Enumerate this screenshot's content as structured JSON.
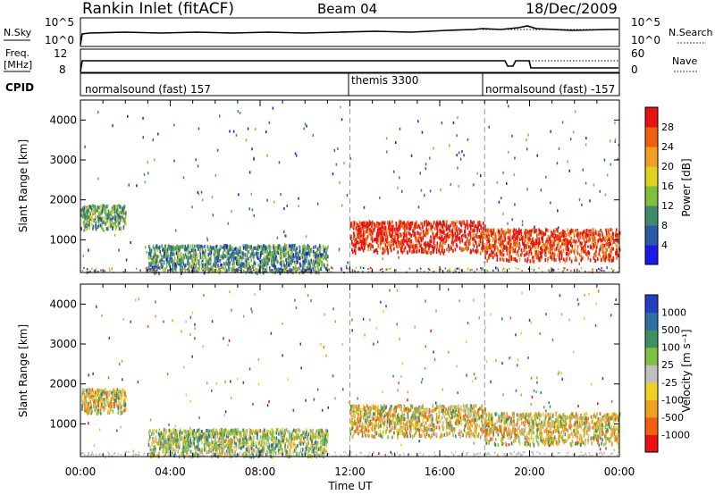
{
  "header": {
    "station": "Rankin Inlet (fitACF)",
    "beam": "Beam 04",
    "date": "18/Dec/2009"
  },
  "strip_labels": {
    "nsky": "N.Sky",
    "nsearch": "N.Search",
    "freq_line1": "Freq.",
    "freq_line2": "[MHz]",
    "nave": "Nave",
    "cpid": "CPID",
    "noise_ticks": [
      "10^5",
      "10^0"
    ],
    "freq_ticks": [
      "12",
      "8"
    ],
    "nave_ticks": [
      "60",
      "0"
    ]
  },
  "cpid_segments": [
    {
      "label": "normalsound (fast) 157",
      "start_hour": 0
    },
    {
      "label": "themis 3300",
      "start_hour": 12
    },
    {
      "label": "normalsound (fast) -157",
      "start_hour": 18
    }
  ],
  "axes": {
    "ylabel": "Slant Range [km]",
    "xlabel": "Time UT",
    "x_ticks": [
      "00:00",
      "04:00",
      "08:00",
      "12:00",
      "16:00",
      "20:00",
      "00:00"
    ],
    "y_ticks": [
      "1000",
      "2000",
      "3000",
      "4000"
    ]
  },
  "colorbars": {
    "power": {
      "label": "Power [dB]",
      "ticks": [
        "4",
        "8",
        "12",
        "16",
        "20",
        "24",
        "28"
      ],
      "colors": [
        "#1a1ae6",
        "#2a5aa8",
        "#3f8a6a",
        "#7fbf3f",
        "#e0d020",
        "#f0a020",
        "#f06010",
        "#e81010"
      ]
    },
    "velocity": {
      "label": "Velocity [m s⁻¹]",
      "ticks": [
        "1000",
        "500",
        "100",
        "25",
        "-25",
        "-100",
        "-500",
        "-1000"
      ],
      "colors": [
        "#2040c0",
        "#2f6fa0",
        "#3f8f60",
        "#7fc040",
        "#bfbfbf",
        "#f0d020",
        "#f0a020",
        "#f06010",
        "#e81010"
      ]
    }
  },
  "chart_data": {
    "type": "heatmap",
    "x_range_hours": [
      0,
      24
    ],
    "y_range_km": [
      180,
      4500
    ],
    "power_panel": {
      "colorbar": "Power [dB]",
      "dominant_regions": [
        {
          "t_start": 0,
          "t_end": 2,
          "range_start": 1300,
          "range_end": 1900,
          "power_db": 12
        },
        {
          "t_start": 3,
          "t_end": 11,
          "range_start": 200,
          "range_end": 900,
          "power_db": 10
        },
        {
          "t_start": 12,
          "t_end": 18,
          "range_start": 700,
          "range_end": 1500,
          "power_db": 30
        },
        {
          "t_start": 18,
          "t_end": 24,
          "range_start": 500,
          "range_end": 1300,
          "power_db": 28
        }
      ]
    },
    "velocity_panel": {
      "colorbar": "Velocity [m s-1]",
      "dominant_regions": [
        {
          "t_start": 0,
          "t_end": 2,
          "range_start": 1300,
          "range_end": 1900,
          "velocity": -100
        },
        {
          "t_start": 3,
          "t_end": 11,
          "range_start": 200,
          "range_end": 900,
          "velocity": 100
        },
        {
          "t_start": 12,
          "t_end": 18,
          "range_start": 700,
          "range_end": 1500,
          "velocity": -100
        },
        {
          "t_start": 18,
          "t_end": 24,
          "range_start": 500,
          "range_end": 1300,
          "velocity": -300
        }
      ]
    }
  }
}
